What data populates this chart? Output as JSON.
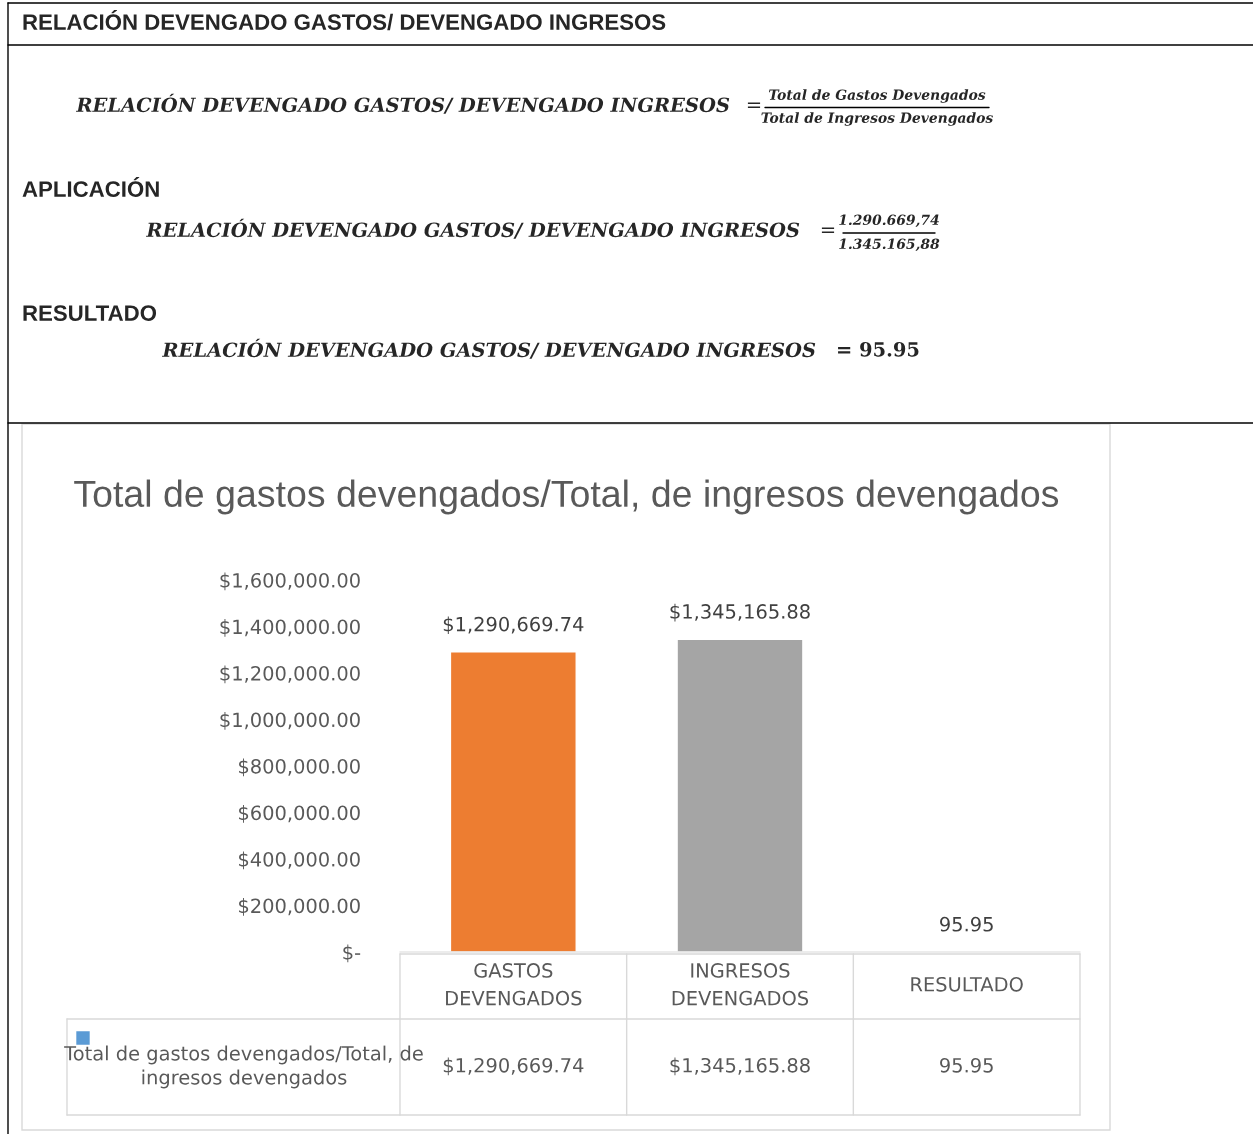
{
  "chart_data": {
    "type": "bar",
    "title": "Total de gastos devengados/Total, de ingresos devengados",
    "categories": [
      "GASTOS DEVENGADOS",
      "INGRESOS DEVENGADOS",
      "RESULTADO"
    ],
    "series": [
      {
        "name": "Total de gastos devengados/Total, de ingresos devengados",
        "color": "#5b9bd5",
        "colors": [
          "#ed7d31",
          "#a5a5a5",
          "#5b9bd5"
        ],
        "values": [
          1290669.74,
          1345165.88,
          95.95
        ],
        "value_labels": [
          "$1,290,669.74",
          "$1,345,165.88",
          "95.95"
        ]
      }
    ],
    "ylim": [
      0,
      1600000
    ],
    "yticks": [
      {
        "value": 0,
        "label": "$-"
      },
      {
        "value": 200000,
        "label": "$200,000.00"
      },
      {
        "value": 400000,
        "label": "$400,000.00"
      },
      {
        "value": 600000,
        "label": "$600,000.00"
      },
      {
        "value": 800000,
        "label": "$800,000.00"
      },
      {
        "value": 1000000,
        "label": "$1,000,000.00"
      },
      {
        "value": 1200000,
        "label": "$1,200,000.00"
      },
      {
        "value": 1400000,
        "label": "$1,400,000.00"
      },
      {
        "value": 1600000,
        "label": "$1,600,000.00"
      }
    ],
    "grid": false,
    "legend": "bottom",
    "annotations": [
      "RELACIÓN DEVENGADO GASTOS/ DEVENGADO INGRESOS",
      "RELACIÓN DEVENGADO GASTOS/ DEVENGADO INGRESOS",
      "=",
      "Total de Gastos Devengados",
      "Total de Ingresos Devengados",
      "APLICACIÓN",
      "RELACIÓN DEVENGADO GASTOS/ DEVENGADO INGRESOS",
      "=",
      "1.290.669,74",
      "1.345.165,88",
      "RESULTADO",
      "RELACIÓN DEVENGADO GASTOS/ DEVENGADO INGRESOS",
      "= 95.95"
    ]
  }
}
